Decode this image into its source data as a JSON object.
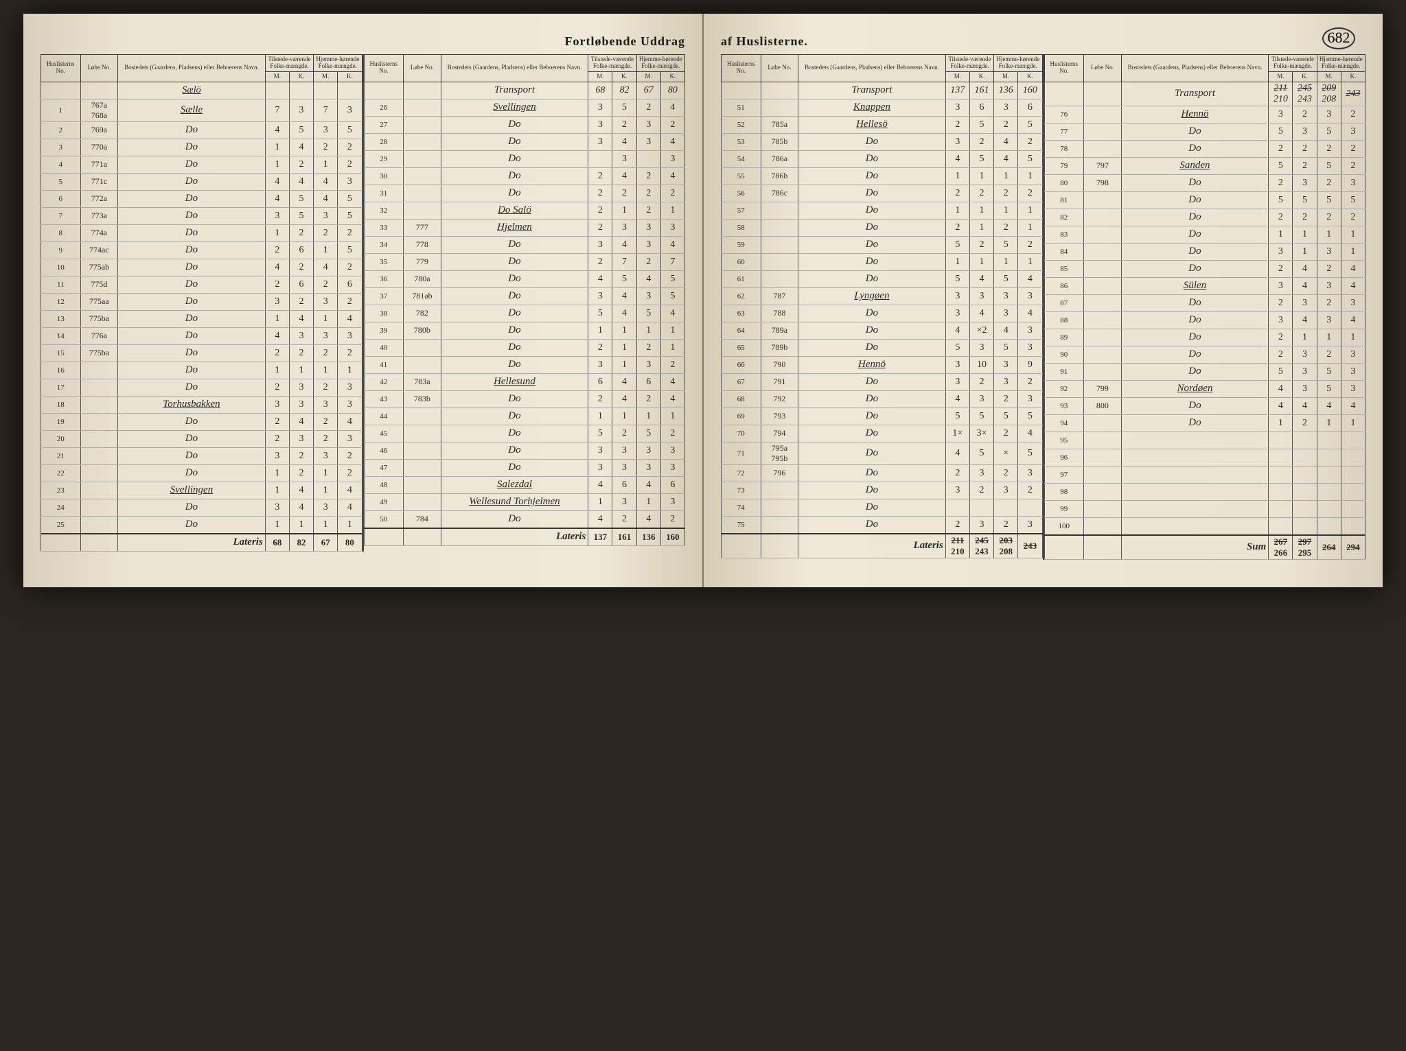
{
  "page_number": "682",
  "title_left": "Fortløbende Uddrag",
  "title_right": "af Huslisterne.",
  "headers": {
    "huslisterns": "Huslisterns No.",
    "lobe": "Løbe No.",
    "bosted": "Bostedets (Gaardens, Pladsens) eller Beboerens Navn.",
    "tilstede": "Tilstede-værende Folke-mængde.",
    "hjemme": "Hjemme-hørende Folke-mængde.",
    "m": "M.",
    "k": "K.",
    "transport": "Transport",
    "lateris": "Lateris",
    "sum": "Sum"
  },
  "left_page": {
    "col_a": {
      "heading": "Sælö",
      "rows": [
        {
          "n": "1",
          "lobe": "767a 768a",
          "name": "Sælle",
          "m1": "7",
          "k1": "3",
          "m2": "7",
          "k2": "3"
        },
        {
          "n": "2",
          "lobe": "769a",
          "name": "Do",
          "m1": "4",
          "k1": "5",
          "m2": "3",
          "k2": "5"
        },
        {
          "n": "3",
          "lobe": "770a",
          "name": "Do",
          "m1": "1",
          "k1": "4",
          "m2": "2",
          "k2": "2"
        },
        {
          "n": "4",
          "lobe": "771a",
          "name": "Do",
          "m1": "1",
          "k1": "2",
          "m2": "1",
          "k2": "2"
        },
        {
          "n": "5",
          "lobe": "771c",
          "name": "Do",
          "m1": "4",
          "k1": "4",
          "m2": "4",
          "k2": "3"
        },
        {
          "n": "6",
          "lobe": "772a",
          "name": "Do",
          "m1": "4",
          "k1": "5",
          "m2": "4",
          "k2": "5"
        },
        {
          "n": "7",
          "lobe": "773a",
          "name": "Do",
          "m1": "3",
          "k1": "5",
          "m2": "3",
          "k2": "5"
        },
        {
          "n": "8",
          "lobe": "774a",
          "name": "Do",
          "m1": "1",
          "k1": "2",
          "m2": "2",
          "k2": "2"
        },
        {
          "n": "9",
          "lobe": "774ac",
          "name": "Do",
          "m1": "2",
          "k1": "6",
          "m2": "1",
          "k2": "5"
        },
        {
          "n": "10",
          "lobe": "775ab",
          "name": "Do",
          "m1": "4",
          "k1": "2",
          "m2": "4",
          "k2": "2"
        },
        {
          "n": "11",
          "lobe": "775d",
          "name": "Do",
          "m1": "2",
          "k1": "6",
          "m2": "2",
          "k2": "6"
        },
        {
          "n": "12",
          "lobe": "775aa",
          "name": "Do",
          "m1": "3",
          "k1": "2",
          "m2": "3",
          "k2": "2"
        },
        {
          "n": "13",
          "lobe": "775ba",
          "name": "Do",
          "m1": "1",
          "k1": "4",
          "m2": "1",
          "k2": "4"
        },
        {
          "n": "14",
          "lobe": "776a",
          "name": "Do",
          "m1": "4",
          "k1": "3",
          "m2": "3",
          "k2": "3"
        },
        {
          "n": "15",
          "lobe": "775ba",
          "name": "Do",
          "m1": "2",
          "k1": "2",
          "m2": "2",
          "k2": "2"
        },
        {
          "n": "16",
          "lobe": "",
          "name": "Do",
          "m1": "1",
          "k1": "1",
          "m2": "1",
          "k2": "1"
        },
        {
          "n": "17",
          "lobe": "",
          "name": "Do",
          "m1": "2",
          "k1": "3",
          "m2": "2",
          "k2": "3"
        },
        {
          "n": "18",
          "lobe": "",
          "name": "Torhusbakken",
          "m1": "3",
          "k1": "3",
          "m2": "3",
          "k2": "3"
        },
        {
          "n": "19",
          "lobe": "",
          "name": "Do",
          "m1": "2",
          "k1": "4",
          "m2": "2",
          "k2": "4"
        },
        {
          "n": "20",
          "lobe": "",
          "name": "Do",
          "m1": "2",
          "k1": "3",
          "m2": "2",
          "k2": "3"
        },
        {
          "n": "21",
          "lobe": "",
          "name": "Do",
          "m1": "3",
          "k1": "2",
          "m2": "3",
          "k2": "2"
        },
        {
          "n": "22",
          "lobe": "",
          "name": "Do",
          "m1": "1",
          "k1": "2",
          "m2": "1",
          "k2": "2"
        },
        {
          "n": "23",
          "lobe": "",
          "name": "Svellingen",
          "m1": "1",
          "k1": "4",
          "m2": "1",
          "k2": "4"
        },
        {
          "n": "24",
          "lobe": "",
          "name": "Do",
          "m1": "3",
          "k1": "4",
          "m2": "3",
          "k2": "4"
        },
        {
          "n": "25",
          "lobe": "",
          "name": "Do",
          "m1": "1",
          "k1": "1",
          "m2": "1",
          "k2": "1"
        }
      ],
      "lateris": {
        "m1": "68",
        "k1": "82",
        "m2": "67",
        "k2": "80"
      }
    },
    "col_b": {
      "transport": {
        "m1": "68",
        "k1": "82",
        "m2": "67",
        "k2": "80"
      },
      "rows": [
        {
          "n": "26",
          "lobe": "",
          "name": "Svellingen",
          "m1": "3",
          "k1": "5",
          "m2": "2",
          "k2": "4"
        },
        {
          "n": "27",
          "lobe": "",
          "name": "Do",
          "m1": "3",
          "k1": "2",
          "m2": "3",
          "k2": "2"
        },
        {
          "n": "28",
          "lobe": "",
          "name": "Do",
          "m1": "3",
          "k1": "4",
          "m2": "3",
          "k2": "4"
        },
        {
          "n": "29",
          "lobe": "",
          "name": "Do",
          "m1": "",
          "k1": "3",
          "m2": "",
          "k2": "3"
        },
        {
          "n": "30",
          "lobe": "",
          "name": "Do",
          "m1": "2",
          "k1": "4",
          "m2": "2",
          "k2": "4"
        },
        {
          "n": "31",
          "lobe": "",
          "name": "Do",
          "m1": "2",
          "k1": "2",
          "m2": "2",
          "k2": "2"
        },
        {
          "n": "32",
          "lobe": "",
          "name": "Do Salö",
          "m1": "2",
          "k1": "1",
          "m2": "2",
          "k2": "1"
        },
        {
          "n": "33",
          "lobe": "777",
          "name": "Hjelmen",
          "m1": "2",
          "k1": "3",
          "m2": "3",
          "k2": "3"
        },
        {
          "n": "34",
          "lobe": "778",
          "name": "Do",
          "m1": "3",
          "k1": "4",
          "m2": "3",
          "k2": "4"
        },
        {
          "n": "35",
          "lobe": "779",
          "name": "Do",
          "m1": "2",
          "k1": "7",
          "m2": "2",
          "k2": "7"
        },
        {
          "n": "36",
          "lobe": "780a",
          "name": "Do",
          "m1": "4",
          "k1": "5",
          "m2": "4",
          "k2": "5"
        },
        {
          "n": "37",
          "lobe": "781ab",
          "name": "Do",
          "m1": "3",
          "k1": "4",
          "m2": "3",
          "k2": "5"
        },
        {
          "n": "38",
          "lobe": "782",
          "name": "Do",
          "m1": "5",
          "k1": "4",
          "m2": "5",
          "k2": "4"
        },
        {
          "n": "39",
          "lobe": "780b",
          "name": "Do",
          "m1": "1",
          "k1": "1",
          "m2": "1",
          "k2": "1"
        },
        {
          "n": "40",
          "lobe": "",
          "name": "Do",
          "m1": "2",
          "k1": "1",
          "m2": "2",
          "k2": "1"
        },
        {
          "n": "41",
          "lobe": "",
          "name": "Do",
          "m1": "3",
          "k1": "1",
          "m2": "3",
          "k2": "2"
        },
        {
          "n": "42",
          "lobe": "783a",
          "name": "Hellesund",
          "m1": "6",
          "k1": "4",
          "m2": "6",
          "k2": "4"
        },
        {
          "n": "43",
          "lobe": "783b",
          "name": "Do",
          "m1": "2",
          "k1": "4",
          "m2": "2",
          "k2": "4"
        },
        {
          "n": "44",
          "lobe": "",
          "name": "Do",
          "m1": "1",
          "k1": "1",
          "m2": "1",
          "k2": "1"
        },
        {
          "n": "45",
          "lobe": "",
          "name": "Do",
          "m1": "5",
          "k1": "2",
          "m2": "5",
          "k2": "2"
        },
        {
          "n": "46",
          "lobe": "",
          "name": "Do",
          "m1": "3",
          "k1": "3",
          "m2": "3",
          "k2": "3"
        },
        {
          "n": "47",
          "lobe": "",
          "name": "Do",
          "m1": "3",
          "k1": "3",
          "m2": "3",
          "k2": "3"
        },
        {
          "n": "48",
          "lobe": "",
          "name": "Salezdal",
          "m1": "4",
          "k1": "6",
          "m2": "4",
          "k2": "6"
        },
        {
          "n": "49",
          "lobe": "",
          "name": "Wellesund Torhjelmen",
          "m1": "1",
          "k1": "3",
          "m2": "1",
          "k2": "3"
        },
        {
          "n": "50",
          "lobe": "784",
          "name": "Do",
          "m1": "4",
          "k1": "2",
          "m2": "4",
          "k2": "2"
        }
      ],
      "lateris": {
        "m1": "137",
        "k1": "161",
        "m2": "136",
        "k2": "160"
      }
    }
  },
  "right_page": {
    "col_a": {
      "transport": {
        "m1": "137",
        "k1": "161",
        "m2": "136",
        "k2": "160"
      },
      "rows": [
        {
          "n": "51",
          "lobe": "",
          "name": "Knappen",
          "m1": "3",
          "k1": "6",
          "m2": "3",
          "k2": "6"
        },
        {
          "n": "52",
          "lobe": "785a",
          "name": "Hellesö",
          "m1": "2",
          "k1": "5",
          "m2": "2",
          "k2": "5"
        },
        {
          "n": "53",
          "lobe": "785b",
          "name": "Do",
          "m1": "3",
          "k1": "2",
          "m2": "4",
          "k2": "2"
        },
        {
          "n": "54",
          "lobe": "786a",
          "name": "Do",
          "m1": "4",
          "k1": "5",
          "m2": "4",
          "k2": "5"
        },
        {
          "n": "55",
          "lobe": "786b",
          "name": "Do",
          "m1": "1",
          "k1": "1",
          "m2": "1",
          "k2": "1"
        },
        {
          "n": "56",
          "lobe": "786c",
          "name": "Do",
          "m1": "2",
          "k1": "2",
          "m2": "2",
          "k2": "2"
        },
        {
          "n": "57",
          "lobe": "",
          "name": "Do",
          "m1": "1",
          "k1": "1",
          "m2": "1",
          "k2": "1"
        },
        {
          "n": "58",
          "lobe": "",
          "name": "Do",
          "m1": "2",
          "k1": "1",
          "m2": "2",
          "k2": "1"
        },
        {
          "n": "59",
          "lobe": "",
          "name": "Do",
          "m1": "5",
          "k1": "2",
          "m2": "5",
          "k2": "2"
        },
        {
          "n": "60",
          "lobe": "",
          "name": "Do",
          "m1": "1",
          "k1": "1",
          "m2": "1",
          "k2": "1"
        },
        {
          "n": "61",
          "lobe": "",
          "name": "Do",
          "m1": "5",
          "k1": "4",
          "m2": "5",
          "k2": "4"
        },
        {
          "n": "62",
          "lobe": "787",
          "name": "Lyngøen",
          "m1": "3",
          "k1": "3",
          "m2": "3",
          "k2": "3"
        },
        {
          "n": "63",
          "lobe": "788",
          "name": "Do",
          "m1": "3",
          "k1": "4",
          "m2": "3",
          "k2": "4"
        },
        {
          "n": "64",
          "lobe": "789a",
          "name": "Do",
          "m1": "4",
          "k1": "×2",
          "m2": "4",
          "k2": "3"
        },
        {
          "n": "65",
          "lobe": "789b",
          "name": "Do",
          "m1": "5",
          "k1": "3",
          "m2": "5",
          "k2": "3"
        },
        {
          "n": "66",
          "lobe": "790",
          "name": "Hennö",
          "m1": "3",
          "k1": "10",
          "m2": "3",
          "k2": "9"
        },
        {
          "n": "67",
          "lobe": "791",
          "name": "Do",
          "m1": "3",
          "k1": "2",
          "m2": "3",
          "k2": "2"
        },
        {
          "n": "68",
          "lobe": "792",
          "name": "Do",
          "m1": "4",
          "k1": "3",
          "m2": "2",
          "k2": "3"
        },
        {
          "n": "69",
          "lobe": "793",
          "name": "Do",
          "m1": "5",
          "k1": "5",
          "m2": "5",
          "k2": "5"
        },
        {
          "n": "70",
          "lobe": "794",
          "name": "Do",
          "m1": "1×",
          "k1": "3×",
          "m2": "2",
          "k2": "4"
        },
        {
          "n": "71",
          "lobe": "795a 795b",
          "name": "Do",
          "m1": "4",
          "k1": "5",
          "m2": "×",
          "k2": "5"
        },
        {
          "n": "72",
          "lobe": "796",
          "name": "Do",
          "m1": "2",
          "k1": "3",
          "m2": "2",
          "k2": "3"
        },
        {
          "n": "73",
          "lobe": "",
          "name": "Do",
          "m1": "3",
          "k1": "2",
          "m2": "3",
          "k2": "2"
        },
        {
          "n": "74",
          "lobe": "",
          "name": "Do",
          "m1": "",
          "k1": "",
          "m2": "",
          "k2": ""
        },
        {
          "n": "75",
          "lobe": "",
          "name": "Do",
          "m1": "2",
          "k1": "3",
          "m2": "2",
          "k2": "3"
        }
      ],
      "lateris": {
        "m1": "210",
        "k1": "243",
        "m2": "208",
        "k2": ""
      },
      "lateris_struck": {
        "m1": "211",
        "k1": "245",
        "m2": "203",
        "k2": "243"
      }
    },
    "col_b": {
      "transport": {
        "m1": "210",
        "k1": "243",
        "m2": "208",
        "k2": ""
      },
      "transport_struck": {
        "m1": "211",
        "k1": "245",
        "m2": "209",
        "k2": "243"
      },
      "rows": [
        {
          "n": "76",
          "lobe": "",
          "name": "Hennö",
          "m1": "3",
          "k1": "2",
          "m2": "3",
          "k2": "2"
        },
        {
          "n": "77",
          "lobe": "",
          "name": "Do",
          "m1": "5",
          "k1": "3",
          "m2": "5",
          "k2": "3"
        },
        {
          "n": "78",
          "lobe": "",
          "name": "Do",
          "m1": "2",
          "k1": "2",
          "m2": "2",
          "k2": "2"
        },
        {
          "n": "79",
          "lobe": "797",
          "name": "Sanden",
          "m1": "5",
          "k1": "2",
          "m2": "5",
          "k2": "2"
        },
        {
          "n": "80",
          "lobe": "798",
          "name": "Do",
          "m1": "2",
          "k1": "3",
          "m2": "2",
          "k2": "3"
        },
        {
          "n": "81",
          "lobe": "",
          "name": "Do",
          "m1": "5",
          "k1": "5",
          "m2": "5",
          "k2": "5"
        },
        {
          "n": "82",
          "lobe": "",
          "name": "Do",
          "m1": "2",
          "k1": "2",
          "m2": "2",
          "k2": "2"
        },
        {
          "n": "83",
          "lobe": "",
          "name": "Do",
          "m1": "1",
          "k1": "1",
          "m2": "1",
          "k2": "1"
        },
        {
          "n": "84",
          "lobe": "",
          "name": "Do",
          "m1": "3",
          "k1": "1",
          "m2": "3",
          "k2": "1"
        },
        {
          "n": "85",
          "lobe": "",
          "name": "Do",
          "m1": "2",
          "k1": "4",
          "m2": "2",
          "k2": "4"
        },
        {
          "n": "86",
          "lobe": "",
          "name": "Sülen",
          "m1": "3",
          "k1": "4",
          "m2": "3",
          "k2": "4"
        },
        {
          "n": "87",
          "lobe": "",
          "name": "Do",
          "m1": "2",
          "k1": "3",
          "m2": "2",
          "k2": "3"
        },
        {
          "n": "88",
          "lobe": "",
          "name": "Do",
          "m1": "3",
          "k1": "4",
          "m2": "3",
          "k2": "4"
        },
        {
          "n": "89",
          "lobe": "",
          "name": "Do",
          "m1": "2",
          "k1": "1",
          "m2": "1",
          "k2": "1"
        },
        {
          "n": "90",
          "lobe": "",
          "name": "Do",
          "m1": "2",
          "k1": "3",
          "m2": "2",
          "k2": "3"
        },
        {
          "n": "91",
          "lobe": "",
          "name": "Do",
          "m1": "5",
          "k1": "3",
          "m2": "5",
          "k2": "3"
        },
        {
          "n": "92",
          "lobe": "799",
          "name": "Nordøen",
          "m1": "4",
          "k1": "3",
          "m2": "5",
          "k2": "3"
        },
        {
          "n": "93",
          "lobe": "800",
          "name": "Do",
          "m1": "4",
          "k1": "4",
          "m2": "4",
          "k2": "4"
        },
        {
          "n": "94",
          "lobe": "",
          "name": "Do",
          "m1": "1",
          "k1": "2",
          "m2": "1",
          "k2": "1"
        },
        {
          "n": "95",
          "lobe": "",
          "name": "",
          "m1": "",
          "k1": "",
          "m2": "",
          "k2": ""
        },
        {
          "n": "96",
          "lobe": "",
          "name": "",
          "m1": "",
          "k1": "",
          "m2": "",
          "k2": ""
        },
        {
          "n": "97",
          "lobe": "",
          "name": "",
          "m1": "",
          "k1": "",
          "m2": "",
          "k2": ""
        },
        {
          "n": "98",
          "lobe": "",
          "name": "",
          "m1": "",
          "k1": "",
          "m2": "",
          "k2": ""
        },
        {
          "n": "99",
          "lobe": "",
          "name": "",
          "m1": "",
          "k1": "",
          "m2": "",
          "k2": ""
        },
        {
          "n": "100",
          "lobe": "",
          "name": "",
          "m1": "",
          "k1": "",
          "m2": "",
          "k2": ""
        }
      ],
      "sum": {
        "m1": "266",
        "k1": "295",
        "m2": "",
        "k2": ""
      },
      "sum_struck": {
        "m1": "267",
        "k1": "297",
        "m2": "264",
        "k2": "294"
      }
    }
  }
}
